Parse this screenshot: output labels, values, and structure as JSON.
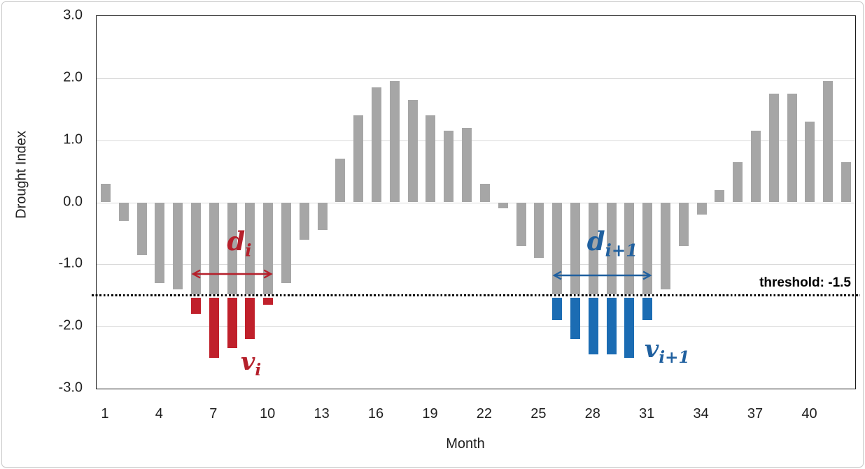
{
  "chart_data": {
    "type": "bar",
    "title": "",
    "xlabel": "Month",
    "ylabel": "Drought Index",
    "ylim": [
      -3.0,
      3.0
    ],
    "y_tick_labels": [
      "3.0",
      "2.0",
      "1.0",
      "0.0",
      "-1.0",
      "-2.0",
      "-3.0"
    ],
    "x_tick_months": [
      1,
      4,
      7,
      10,
      13,
      16,
      19,
      22,
      25,
      28,
      31,
      34,
      37,
      40
    ],
    "months": [
      1,
      2,
      3,
      4,
      5,
      6,
      7,
      8,
      9,
      10,
      11,
      12,
      13,
      14,
      15,
      16,
      17,
      18,
      19,
      20,
      21,
      22,
      23,
      24,
      25,
      26,
      27,
      28,
      29,
      30,
      31,
      32,
      33,
      34,
      35,
      36,
      37,
      38,
      39,
      40,
      41,
      42
    ],
    "values": [
      0.3,
      -0.3,
      -0.85,
      -1.3,
      -1.4,
      -1.8,
      -2.5,
      -2.35,
      -2.2,
      -1.65,
      -1.3,
      -0.6,
      -0.45,
      0.7,
      1.4,
      1.85,
      1.95,
      1.65,
      1.4,
      1.15,
      1.2,
      0.3,
      -0.1,
      -0.7,
      -0.9,
      -1.9,
      -2.2,
      -2.45,
      -2.45,
      -2.5,
      -1.9,
      -1.4,
      -0.7,
      -0.2,
      0.2,
      0.65,
      1.15,
      1.75,
      1.75,
      1.3,
      1.95,
      0.65
    ],
    "threshold": -1.5,
    "threshold_label": "threshold: -1.5",
    "grid": "horizontal, every 1.0",
    "legend": "none",
    "events": [
      {
        "name": "drought-event-i",
        "start_month": 6,
        "end_month": 10,
        "bar_color": "#c0202b",
        "annotation_color": "#b5202b",
        "duration_label": {
          "main": "d",
          "sub": "i"
        },
        "severity_label": {
          "main": "v",
          "sub": "i"
        }
      },
      {
        "name": "drought-event-i-plus-1",
        "start_month": 26,
        "end_month": 31,
        "bar_color": "#1b6cb3",
        "annotation_color": "#20609f",
        "duration_label": {
          "main": "d",
          "sub": "i+1"
        },
        "severity_label": {
          "main": "v",
          "sub": "i+1"
        }
      }
    ],
    "colors": {
      "bar_default": "#a6a6a6",
      "gridline": "#d9d9d9",
      "threshold_line": "#000000",
      "axis_text": "#1f1f1f"
    }
  }
}
